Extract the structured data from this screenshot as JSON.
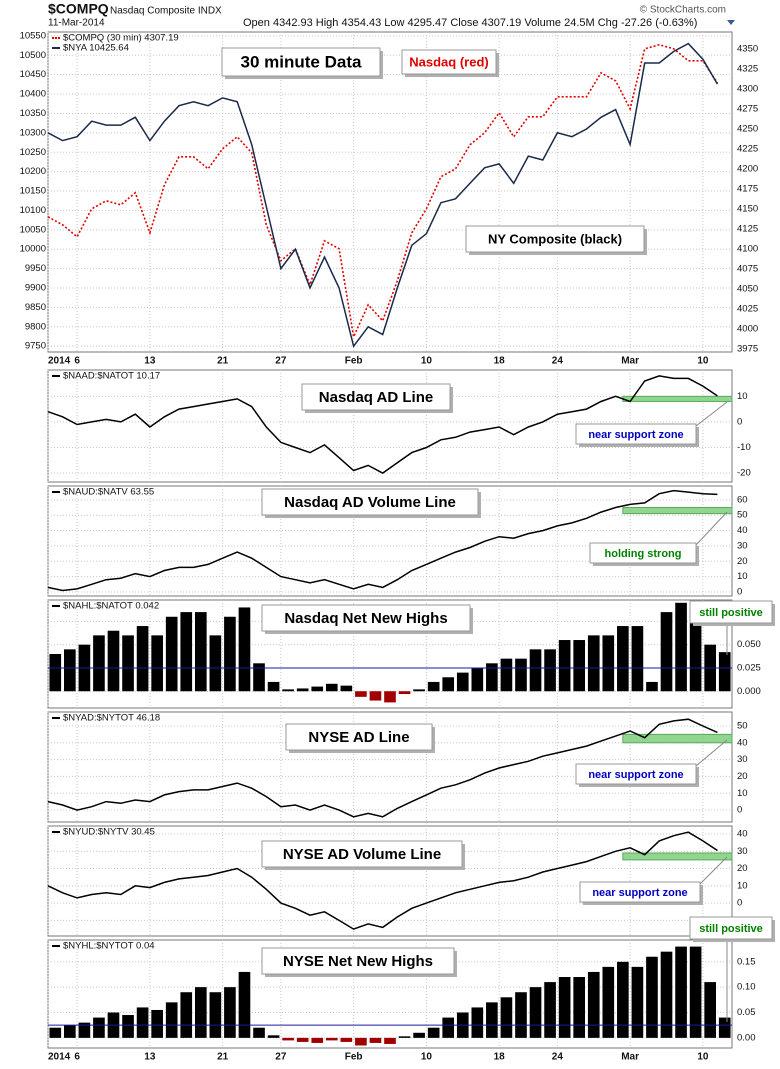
{
  "chart_data": [
    {
      "type": "line",
      "title": "$COMPQ",
      "subtitle": "Nasdaq Composite INDX",
      "date": "11-Mar-2014",
      "quote": "Open 4342.93 High 4354.43 Low 4295.47 Close 4307.19 Volume 24.5M Chg -27.26 (-0.63%)",
      "credit": "© StockCharts.com",
      "xlim": [
        0,
        47
      ],
      "xticks": [
        {
          "value": 0,
          "label": "2014"
        },
        {
          "value": 2,
          "label": "6"
        },
        {
          "value": 7,
          "label": "13"
        },
        {
          "value": 12,
          "label": "21"
        },
        {
          "value": 16,
          "label": "27"
        },
        {
          "value": 21,
          "label": "Feb"
        },
        {
          "value": 26,
          "label": "10"
        },
        {
          "value": 31,
          "label": "18"
        },
        {
          "value": 35,
          "label": "24"
        },
        {
          "value": 40,
          "label": "Mar"
        },
        {
          "value": 45,
          "label": "10"
        }
      ],
      "ylim": [
        9735,
        10560
      ],
      "yticks": [
        9750,
        9800,
        9850,
        9900,
        9950,
        10000,
        10050,
        10100,
        10150,
        10200,
        10250,
        10300,
        10350,
        10400,
        10450,
        10500,
        10550
      ],
      "y2lim": [
        3971,
        4371
      ],
      "y2ticks": [
        3975,
        4000,
        4025,
        4050,
        4075,
        4100,
        4125,
        4150,
        4175,
        4200,
        4225,
        4250,
        4275,
        4300,
        4325,
        4350
      ],
      "grid": true,
      "series": [
        {
          "name": "$COMPQ (30 min) 4307.19",
          "color": "#e00000",
          "dash": true,
          "axis": "y2",
          "values": [
            4140,
            4130,
            4115,
            4150,
            4160,
            4155,
            4170,
            4120,
            4180,
            4215,
            4215,
            4200,
            4225,
            4240,
            4220,
            4130,
            4085,
            4100,
            4055,
            4110,
            4100,
            3990,
            4030,
            4010,
            4060,
            4120,
            4150,
            4190,
            4200,
            4230,
            4245,
            4270,
            4240,
            4265,
            4265,
            4290,
            4290,
            4290,
            4320,
            4310,
            4275,
            4350,
            4355,
            4350,
            4335,
            4335,
            4307.19
          ]
        },
        {
          "name": "$NYA 10425.64",
          "color": "#1a2a4a",
          "dash": false,
          "values": [
            10300,
            10280,
            10290,
            10330,
            10320,
            10320,
            10340,
            10280,
            10330,
            10370,
            10380,
            10370,
            10390,
            10380,
            10270,
            10110,
            9950,
            10000,
            9900,
            9980,
            9900,
            9750,
            9800,
            9780,
            9900,
            10010,
            10040,
            10120,
            10130,
            10170,
            10210,
            10220,
            10170,
            10240,
            10230,
            10300,
            10290,
            10310,
            10340,
            10360,
            10270,
            10480,
            10480,
            10510,
            10530,
            10490,
            10425.64
          ]
        }
      ],
      "annotations": [
        {
          "text": "30 minute Data",
          "color": "#000000"
        },
        {
          "text": "Nasdaq (red)",
          "color": "#e00000"
        },
        {
          "text": "NY Composite (black)",
          "color": "#000000"
        }
      ]
    },
    {
      "type": "line",
      "ylim": [
        -23.5,
        20.3
      ],
      "yticks": [
        -20,
        -10,
        0,
        10
      ],
      "grid": true,
      "series": [
        {
          "name": "$NAAD:$NATOT 10.17",
          "color": "#000000",
          "values": [
            4,
            2,
            -1,
            0,
            1,
            0,
            3,
            -2,
            2,
            5,
            6,
            7,
            8,
            9,
            6,
            -2,
            -8,
            -10,
            -12,
            -9,
            -14,
            -19,
            -17,
            -20,
            -16,
            -12,
            -10,
            -7,
            -6,
            -4,
            -3,
            -2,
            -5,
            -2,
            0,
            3,
            4,
            5,
            8,
            10,
            8,
            16,
            18,
            17,
            17,
            14,
            10.17
          ]
        }
      ],
      "zone": [
        8,
        10
      ],
      "zone_x": [
        39.5,
        47
      ],
      "zone_color": "#7ccf7c",
      "annotations": [
        {
          "text": "Nasdaq AD Line",
          "color": "#000000"
        },
        {
          "text": "near support zone",
          "color": "#0000c0"
        }
      ]
    },
    {
      "type": "line",
      "ylim": [
        -2.6,
        69
      ],
      "yticks": [
        0,
        10,
        20,
        30,
        40,
        50,
        60
      ],
      "grid": true,
      "series": [
        {
          "name": "$NAUD:$NATV 63.55",
          "color": "#000000",
          "values": [
            3,
            1,
            2,
            5,
            8,
            9,
            12,
            10,
            14,
            16,
            16,
            18,
            22,
            26,
            22,
            16,
            10,
            8,
            6,
            8,
            5,
            2,
            5,
            3,
            8,
            14,
            18,
            22,
            26,
            29,
            33,
            36,
            35,
            38,
            40,
            43,
            45,
            48,
            52,
            55,
            57,
            58,
            64,
            66,
            65,
            64,
            63.55
          ]
        }
      ],
      "zone": [
        51,
        55
      ],
      "zone_x": [
        39.5,
        47
      ],
      "zone_color": "#7ccf7c",
      "annotations": [
        {
          "text": "Nasdaq AD Volume Line",
          "color": "#000000"
        },
        {
          "text": "holding strong",
          "color": "#008000"
        }
      ]
    },
    {
      "type": "bar",
      "ylim": [
        -0.018,
        0.098
      ],
      "yticks": [
        {
          "value": 0,
          "label": "0.000"
        },
        0.025,
        {
          "value": 0.05,
          "label": "0.050"
        },
        0.075
      ],
      "grid": true,
      "hline": 0.025,
      "hline_color": "#1a1aa0",
      "negative_color": "#a00000",
      "series": [
        {
          "name": "$NAHL:$NATOT 0.042",
          "color": "#000000",
          "values": [
            0.04,
            0.045,
            0.05,
            0.06,
            0.065,
            0.06,
            0.07,
            0.06,
            0.08,
            0.085,
            0.085,
            0.06,
            0.08,
            0.09,
            0.03,
            0.01,
            0.002,
            0.003,
            0.005,
            0.008,
            0.006,
            -0.006,
            -0.01,
            -0.012,
            -0.003,
            0.002,
            0.01,
            0.015,
            0.02,
            0.025,
            0.03,
            0.035,
            0.035,
            0.045,
            0.045,
            0.055,
            0.055,
            0.06,
            0.06,
            0.07,
            0.07,
            0.01,
            0.085,
            0.095,
            0.085,
            0.05,
            0.042
          ]
        }
      ],
      "annotations": [
        {
          "text": "Nasdaq Net New Highs",
          "color": "#000000"
        },
        {
          "text": "still positive",
          "color": "#008000"
        }
      ]
    },
    {
      "type": "line",
      "ylim": [
        -7.1,
        58.3
      ],
      "yticks": [
        0,
        10,
        20,
        30,
        40,
        50
      ],
      "grid": true,
      "series": [
        {
          "name": "$NYAD:$NYTOT 46.18",
          "color": "#000000",
          "values": [
            5,
            3,
            0,
            2,
            5,
            4,
            6,
            5,
            9,
            11,
            12,
            12,
            14,
            16,
            13,
            8,
            2,
            3,
            0,
            3,
            0,
            -4,
            -2,
            -4,
            1,
            5,
            9,
            13,
            15,
            18,
            22,
            25,
            27,
            29,
            32,
            34,
            36,
            38,
            41,
            44,
            47,
            43,
            51,
            53,
            54,
            50,
            46.18
          ]
        }
      ],
      "zone": [
        40,
        45
      ],
      "zone_x": [
        39.5,
        47
      ],
      "zone_color": "#7ccf7c",
      "annotations": [
        {
          "text": "NYSE AD Line",
          "color": "#000000"
        },
        {
          "text": "near support zone",
          "color": "#0000c0"
        }
      ]
    },
    {
      "type": "line",
      "ylim": [
        -19,
        44.6
      ],
      "yticks": [
        -10,
        0,
        10,
        20,
        30,
        40
      ],
      "grid": true,
      "series": [
        {
          "name": "$NYUD:$NYTV 30.45",
          "color": "#000000",
          "values": [
            10,
            6,
            3,
            5,
            6,
            5,
            10,
            9,
            12,
            14,
            15,
            16,
            18,
            20,
            15,
            8,
            0,
            -3,
            -7,
            -5,
            -10,
            -15,
            -12,
            -14,
            -8,
            -3,
            0,
            3,
            6,
            8,
            10,
            12,
            13,
            15,
            18,
            20,
            22,
            24,
            27,
            30,
            32,
            28,
            36,
            39,
            41,
            36,
            30.45
          ]
        }
      ],
      "zone": [
        25,
        29
      ],
      "zone_x": [
        39.5,
        47
      ],
      "zone_color": "#7ccf7c",
      "annotations": [
        {
          "text": "NYSE AD Volume Line",
          "color": "#000000"
        },
        {
          "text": "near support zone",
          "color": "#0000c0"
        }
      ]
    },
    {
      "type": "bar",
      "ylim": [
        -0.02,
        0.193
      ],
      "yticks": [
        {
          "value": 0,
          "label": "0.00"
        },
        0.05,
        {
          "value": 0.1,
          "label": "0.10"
        },
        0.15
      ],
      "grid": true,
      "hline": 0.025,
      "hline_color": "#1a1aa0",
      "negative_color": "#a00000",
      "xlim": [
        0,
        47
      ],
      "xticks": [
        {
          "value": 0,
          "label": "2014"
        },
        {
          "value": 2,
          "label": "6"
        },
        {
          "value": 7,
          "label": "13"
        },
        {
          "value": 12,
          "label": "21"
        },
        {
          "value": 16,
          "label": "27"
        },
        {
          "value": 21,
          "label": "Feb"
        },
        {
          "value": 26,
          "label": "10"
        },
        {
          "value": 31,
          "label": "18"
        },
        {
          "value": 35,
          "label": "24"
        },
        {
          "value": 40,
          "label": "Mar"
        },
        {
          "value": 45,
          "label": "10"
        }
      ],
      "series": [
        {
          "name": "$NYHL:$NYTOT 0.04",
          "color": "#000000",
          "values": [
            0.02,
            0.025,
            0.03,
            0.04,
            0.05,
            0.045,
            0.06,
            0.055,
            0.07,
            0.09,
            0.1,
            0.09,
            0.1,
            0.13,
            0.02,
            0.005,
            -0.005,
            -0.008,
            -0.01,
            -0.005,
            -0.008,
            -0.015,
            -0.01,
            -0.012,
            0.003,
            0.01,
            0.02,
            0.04,
            0.05,
            0.06,
            0.07,
            0.08,
            0.09,
            0.1,
            0.11,
            0.12,
            0.12,
            0.13,
            0.14,
            0.15,
            0.14,
            0.16,
            0.17,
            0.18,
            0.18,
            0.11,
            0.04
          ]
        }
      ],
      "annotations": [
        {
          "text": "NYSE Net New Highs",
          "color": "#000000"
        },
        {
          "text": "still positive",
          "color": "#008000"
        }
      ]
    }
  ]
}
